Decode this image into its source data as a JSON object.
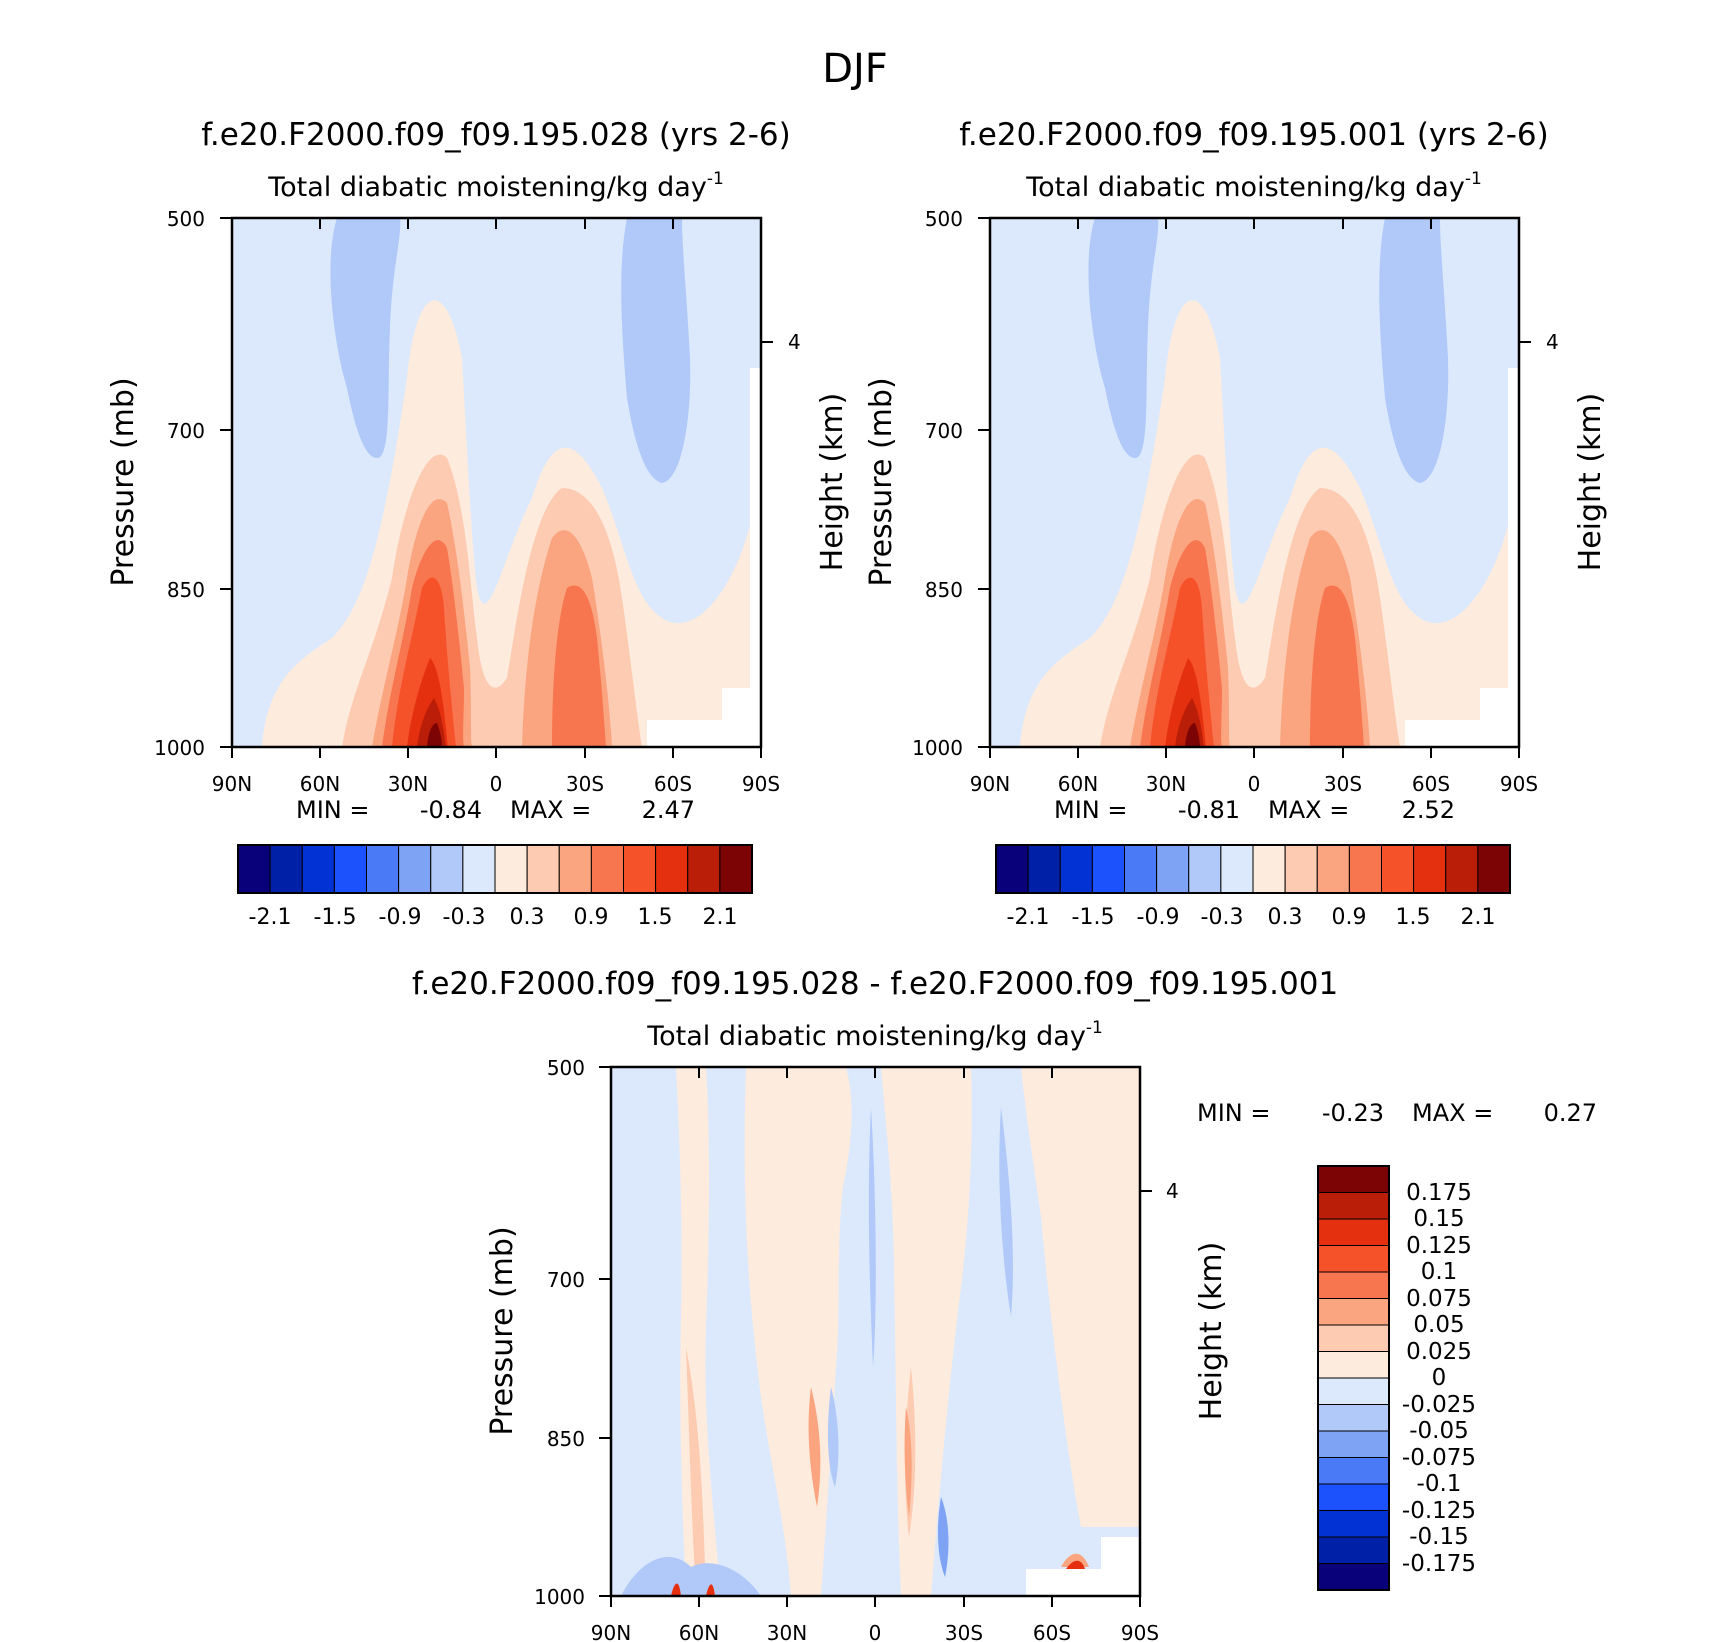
{
  "figure": {
    "title": "DJF"
  },
  "colors": {
    "bar16": [
      "#08017a",
      "#0120a8",
      "#0232d3",
      "#1b52fb",
      "#4a7af5",
      "#7ea3f4",
      "#b0c9f8",
      "#dce9fc",
      "#fdebdd",
      "#fccbb2",
      "#faa580",
      "#f8764f",
      "#f6522a",
      "#e5300f",
      "#bb1e08",
      "#7d0404"
    ],
    "bar14": [
      "#7d0404",
      "#bb1e08",
      "#e5300f",
      "#f6522a",
      "#f8764f",
      "#faa580",
      "#fccbb2",
      "#fdebdd",
      "#dce9fc",
      "#b0c9f8",
      "#7ea3f4",
      "#4a7af5",
      "#1b52fb",
      "#0232d3",
      "#0120a8",
      "#08017a"
    ]
  },
  "chart_data": [
    {
      "type": "contour",
      "panel": "top-left",
      "title": "f.e20.F2000.f09_f09.195.028 (yrs 2-6)",
      "subtitle": "Total diabatic moistening/kg day",
      "subtitle_exp": "-1",
      "xlabel": "",
      "ylabel": "Pressure (mb)",
      "y2label": "Height (km)",
      "xticks": [
        "90N",
        "60N",
        "30N",
        "0",
        "30S",
        "60S",
        "90S"
      ],
      "yticks": [
        "500",
        "700",
        "850",
        "1000"
      ],
      "y2ticks": [
        "4"
      ],
      "min_label": "MIN =",
      "min_value": "-0.84",
      "max_label": "MAX =",
      "max_value": "2.47",
      "colorbar_labels": [
        "-2.1",
        "-1.5",
        "-0.9",
        "-0.3",
        "0.3",
        "0.9",
        "1.5",
        "2.1"
      ]
    },
    {
      "type": "contour",
      "panel": "top-right",
      "title": "f.e20.F2000.f09_f09.195.001 (yrs 2-6)",
      "subtitle": "Total diabatic moistening/kg day",
      "subtitle_exp": "-1",
      "xlabel": "",
      "ylabel": "Pressure (mb)",
      "y2label": "Height (km)",
      "xticks": [
        "90N",
        "60N",
        "30N",
        "0",
        "30S",
        "60S",
        "90S"
      ],
      "yticks": [
        "500",
        "700",
        "850",
        "1000"
      ],
      "y2ticks": [
        "4"
      ],
      "min_label": "MIN =",
      "min_value": "-0.81",
      "max_label": "MAX =",
      "max_value": "2.52",
      "colorbar_labels": [
        "-2.1",
        "-1.5",
        "-0.9",
        "-0.3",
        "0.3",
        "0.9",
        "1.5",
        "2.1"
      ]
    },
    {
      "type": "contour",
      "panel": "bottom",
      "title": "f.e20.F2000.f09_f09.195.028 - f.e20.F2000.f09_f09.195.001",
      "subtitle": "Total diabatic moistening/kg day",
      "subtitle_exp": "-1",
      "xlabel": "",
      "ylabel": "Pressure (mb)",
      "y2label": "Height (km)",
      "xticks": [
        "90N",
        "60N",
        "30N",
        "0",
        "30S",
        "60S",
        "90S"
      ],
      "yticks": [
        "500",
        "700",
        "850",
        "1000"
      ],
      "y2ticks": [
        "4"
      ],
      "min_label": "MIN =",
      "min_value": "-0.23",
      "max_label": "MAX =",
      "max_value": "0.27",
      "colorbar_labels": [
        "0.175",
        "0.15",
        "0.125",
        "0.1",
        "0.075",
        "0.05",
        "0.025",
        "0",
        "-0.025",
        "-0.05",
        "-0.075",
        "-0.1",
        "-0.125",
        "-0.15",
        "-0.175"
      ]
    }
  ]
}
